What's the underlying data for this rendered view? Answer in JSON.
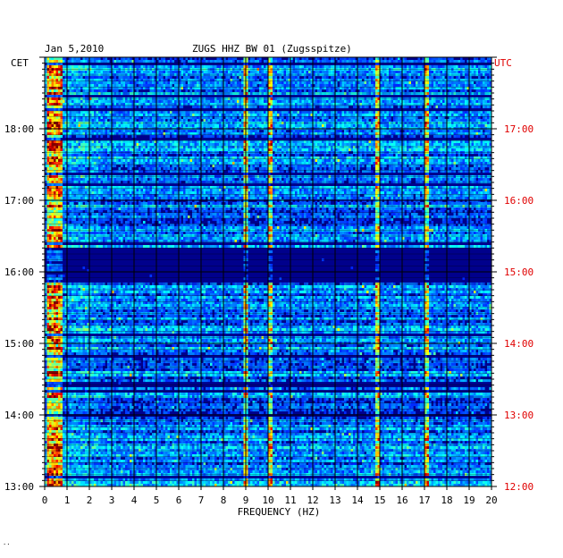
{
  "header": {
    "date": "Jan 5,2010",
    "station": "ZUGS HHZ BW 01 (Zugsspitze)"
  },
  "axes": {
    "left_tz": "CET",
    "right_tz": "UTC",
    "right_tz_color": "#e00000",
    "xlabel": "FREQUENCY (HZ)"
  },
  "corner_mark": "··",
  "chart_data": {
    "type": "heatmap",
    "title": "ZUGS HHZ BW 01 (Zugsspitze)",
    "date": "Jan 5,2010",
    "xlabel": "FREQUENCY (HZ)",
    "x_unit": "Hz",
    "xlim": [
      0,
      20
    ],
    "x_ticks": [
      0,
      1,
      2,
      3,
      4,
      5,
      6,
      7,
      8,
      9,
      10,
      11,
      12,
      13,
      14,
      15,
      16,
      17,
      18,
      19,
      20
    ],
    "time_start_cet": "13:00",
    "time_end_cet": "19:00",
    "y_ticks_left_cet": [
      "13:00",
      "14:00",
      "15:00",
      "16:00",
      "17:00",
      "18:00"
    ],
    "y_ticks_right_utc": [
      "12:00",
      "13:00",
      "14:00",
      "15:00",
      "16:00",
      "17:00"
    ],
    "grid": true,
    "colormap": "jet (dark blue = low energy, red = high energy)",
    "features": [
      {
        "description": "strong broadband energy near 0.2-0.6 Hz",
        "freq_range": [
          0.2,
          0.6
        ]
      },
      {
        "description": "persistent narrow line near 9 Hz",
        "freq": 9.0
      },
      {
        "description": "persistent narrow line near 10.1 Hz",
        "freq": 10.1
      },
      {
        "description": "intermittent line near 14.9 Hz (14:45-16:45 CET)",
        "freq": 14.9
      },
      {
        "description": "intermittent line near 17.1 Hz",
        "freq": 17.1
      },
      {
        "description": "low-energy quiet interval around 16:00-16:15 CET",
        "time_cet": "16:05"
      }
    ]
  }
}
